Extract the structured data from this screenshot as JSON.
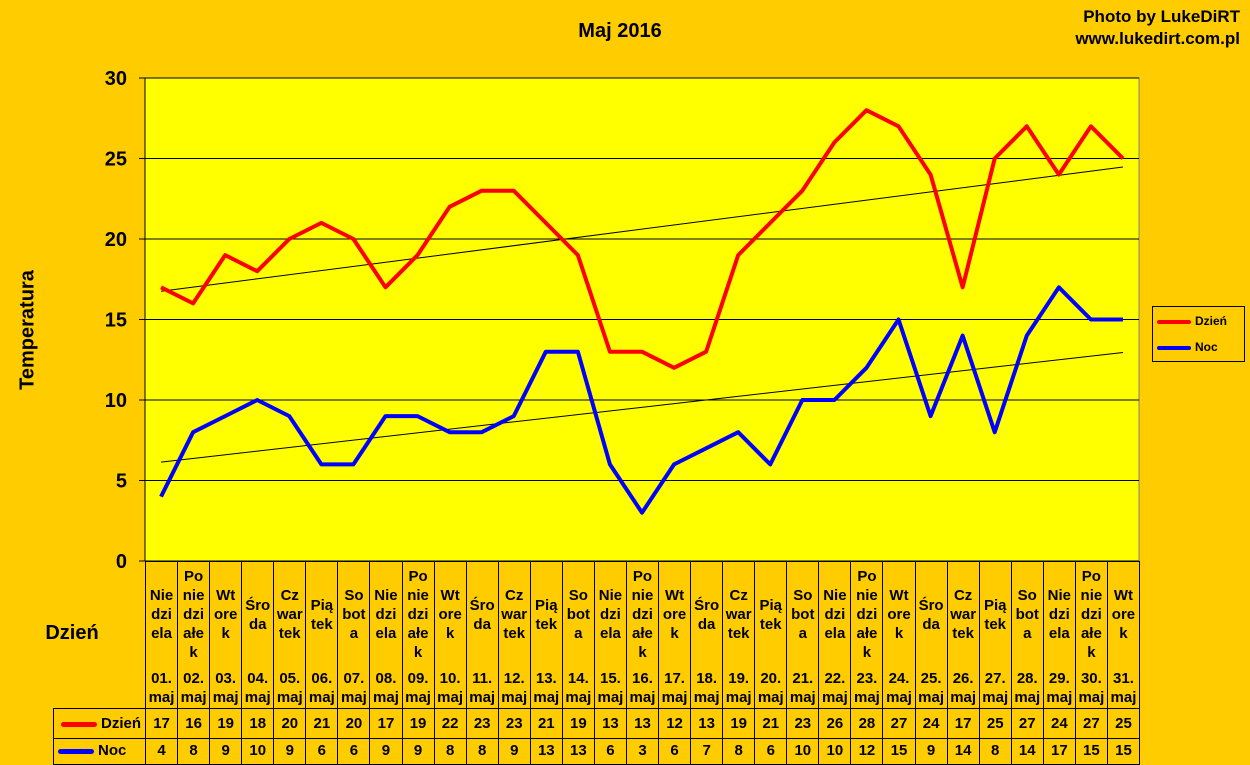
{
  "chart_data": {
    "type": "line",
    "title": "Maj 2016",
    "xlabel": "Dzień",
    "ylabel": "Temperatura",
    "ylim": [
      0,
      30
    ],
    "yticks": [
      0,
      5,
      10,
      15,
      20,
      25,
      30
    ],
    "grid": true,
    "legend_position": "right",
    "trendlines": true,
    "day_names": [
      "Nie\ndzi\nela",
      "Po\nnie\ndzi\nałe\nk",
      "Wt\nore\nk",
      "Śro\nda",
      "Cz\nwar\ntek",
      "Pią\ntek",
      "So\nbot\na",
      "Nie\ndzi\nela",
      "Po\nnie\ndzi\nałe\nk",
      "Wt\nore\nk",
      "Śro\nda",
      "Cz\nwar\ntek",
      "Pią\ntek",
      "So\nbot\na",
      "Nie\ndzi\nela",
      "Po\nnie\ndzi\nałe\nk",
      "Wt\nore\nk",
      "Śro\nda",
      "Cz\nwar\ntek",
      "Pią\ntek",
      "So\nbot\na",
      "Nie\ndzi\nela",
      "Po\nnie\ndzi\nałe\nk",
      "Wt\nore\nk",
      "Śro\nda",
      "Cz\nwar\ntek",
      "Pią\ntek",
      "So\nbot\na",
      "Nie\ndzi\nela",
      "Po\nnie\ndzi\nałe\nk",
      "Wt\nore\nk"
    ],
    "categories": [
      "01.\nmaj",
      "02.\nmaj",
      "03.\nmaj",
      "04.\nmaj",
      "05.\nmaj",
      "06.\nmaj",
      "07.\nmaj",
      "08.\nmaj",
      "09.\nmaj",
      "10.\nmaj",
      "11.\nmaj",
      "12.\nmaj",
      "13.\nmaj",
      "14.\nmaj",
      "15.\nmaj",
      "16.\nmaj",
      "17.\nmaj",
      "18.\nmaj",
      "19.\nmaj",
      "20.\nmaj",
      "21.\nmaj",
      "22.\nmaj",
      "23.\nmaj",
      "24.\nmaj",
      "25.\nmaj",
      "26.\nmaj",
      "27.\nmaj",
      "28.\nmaj",
      "29.\nmaj",
      "30.\nmaj",
      "31.\nmaj"
    ],
    "series": [
      {
        "name": "Dzień",
        "color": "#FF0000",
        "values": [
          17,
          16,
          19,
          18,
          20,
          21,
          20,
          17,
          19,
          22,
          23,
          23,
          21,
          19,
          13,
          13,
          12,
          13,
          19,
          21,
          23,
          26,
          28,
          27,
          24,
          17,
          25,
          27,
          24,
          27,
          25
        ]
      },
      {
        "name": "Noc",
        "color": "#0000FF",
        "values": [
          4,
          8,
          9,
          10,
          9,
          6,
          6,
          9,
          9,
          8,
          8,
          9,
          13,
          13,
          6,
          3,
          6,
          7,
          8,
          6,
          10,
          10,
          12,
          15,
          9,
          14,
          8,
          14,
          17,
          15,
          15
        ]
      }
    ]
  },
  "credit": {
    "line1": "Photo by LukeDiRT",
    "line2": "www.lukedirt.com.pl"
  },
  "colors": {
    "background": "#FFCC00",
    "plot_area": "#FFFF00"
  }
}
